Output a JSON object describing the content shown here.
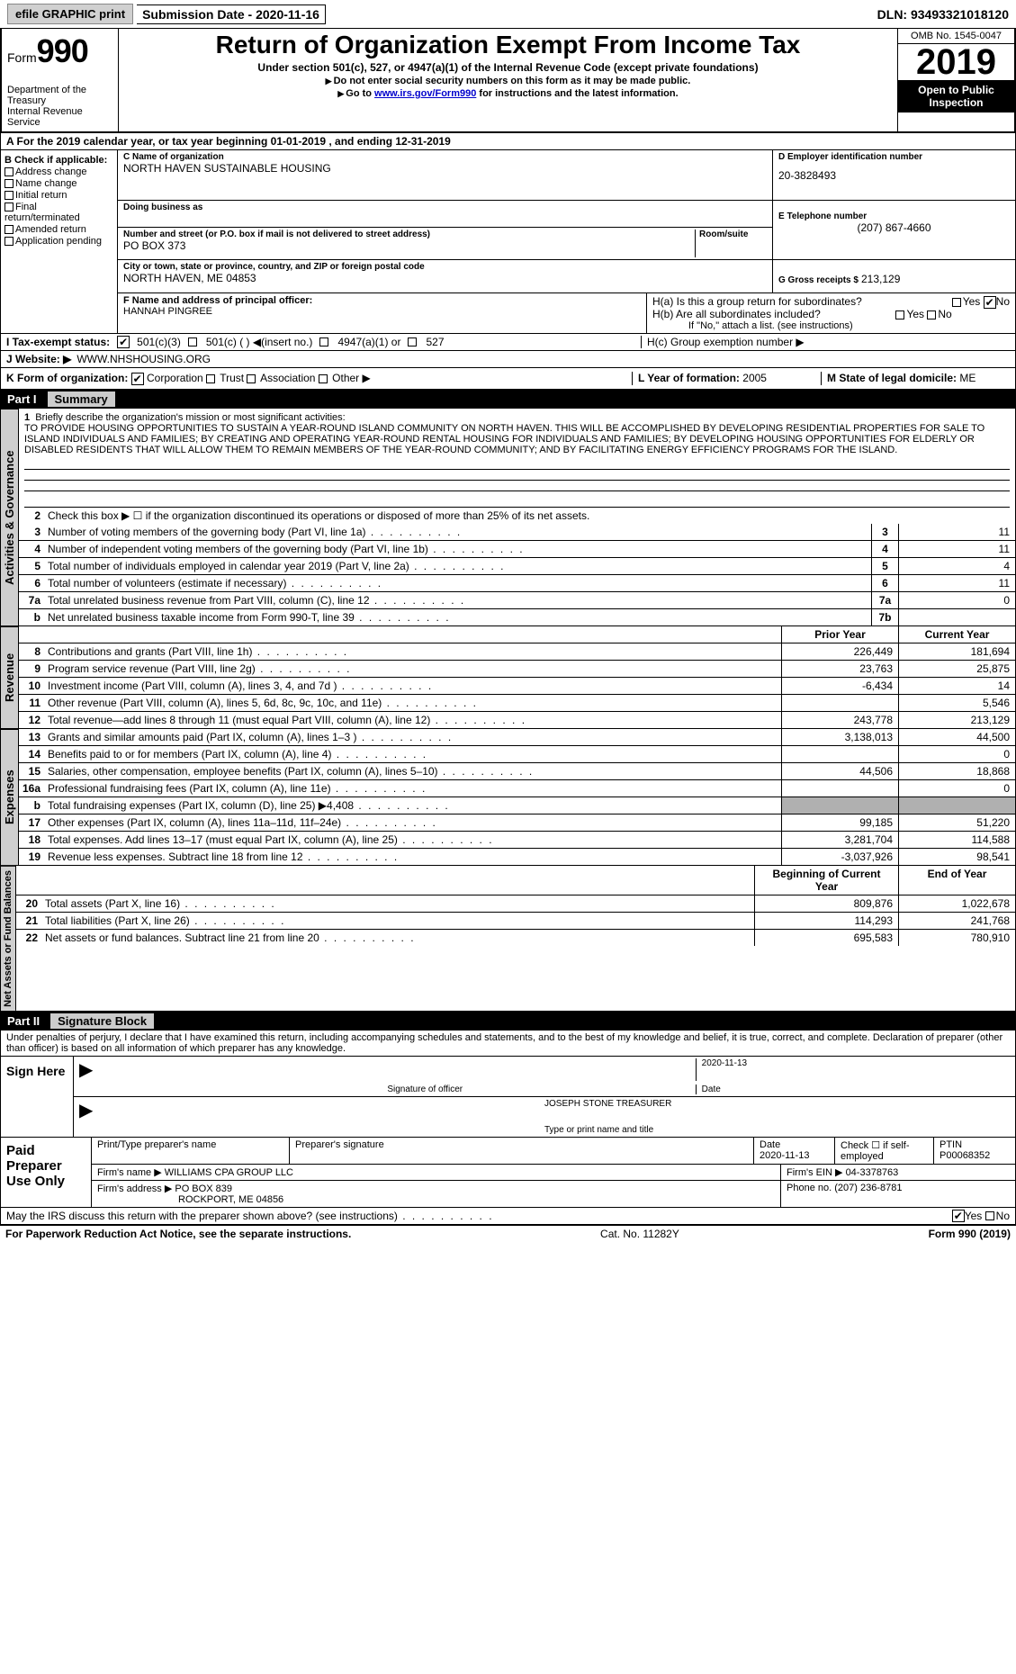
{
  "topbar": {
    "efile": "efile GRAPHIC print",
    "submission": "Submission Date - 2020-11-16",
    "dln_label": "DLN:",
    "dln": "93493321018120"
  },
  "header": {
    "form_label": "Form",
    "form_num": "990",
    "dept": "Department of the Treasury\nInternal Revenue Service",
    "title": "Return of Organization Exempt From Income Tax",
    "sub1": "Under section 501(c), 527, or 4947(a)(1) of the Internal Revenue Code (except private foundations)",
    "sub2": "Do not enter social security numbers on this form as it may be made public.",
    "sub3_pre": "Go to ",
    "sub3_link": "www.irs.gov/Form990",
    "sub3_post": " for instructions and the latest information.",
    "omb": "OMB No. 1545-0047",
    "year": "2019",
    "open": "Open to Public Inspection"
  },
  "section_a": "A For the 2019 calendar year, or tax year beginning 01-01-2019   , and ending 12-31-2019",
  "col_b": {
    "hdr": "B Check if applicable:",
    "addr": "Address change",
    "name": "Name change",
    "init": "Initial return",
    "final": "Final return/terminated",
    "amend": "Amended return",
    "app": "Application pending"
  },
  "col_c": {
    "name_lbl": "C Name of organization",
    "name": "NORTH HAVEN SUSTAINABLE HOUSING",
    "dba_lbl": "Doing business as",
    "dba": "",
    "addr_lbl": "Number and street (or P.O. box if mail is not delivered to street address)",
    "addr": "PO BOX 373",
    "room_lbl": "Room/suite",
    "city_lbl": "City or town, state or province, country, and ZIP or foreign postal code",
    "city": "NORTH HAVEN, ME  04853"
  },
  "col_d": {
    "lbl": "D Employer identification number",
    "val": "20-3828493"
  },
  "col_e": {
    "lbl": "E Telephone number",
    "val": "(207) 867-4660"
  },
  "col_g": {
    "lbl": "G Gross receipts $",
    "val": "213,129"
  },
  "row_f": {
    "lbl": "F Name and address of principal officer:",
    "name": "HANNAH PINGREE"
  },
  "row_h": {
    "a": "H(a)  Is this a group return for subordinates?",
    "b": "H(b)  Are all subordinates included?",
    "b_note": "If \"No,\" attach a list. (see instructions)",
    "c": "H(c)  Group exemption number ▶",
    "yes": "Yes",
    "no": "No"
  },
  "row_i": {
    "lbl": "I   Tax-exempt status:",
    "o1": "501(c)(3)",
    "o2": "501(c) (  ) ◀(insert no.)",
    "o3": "4947(a)(1) or",
    "o4": "527"
  },
  "row_j": {
    "lbl": "J  Website: ▶",
    "val": "WWW.NHSHOUSING.ORG"
  },
  "row_k": {
    "lbl": "K Form of organization:",
    "corp": "Corporation",
    "trust": "Trust",
    "assoc": "Association",
    "other": "Other ▶",
    "l_lbl": "L Year of formation:",
    "l_val": "2005",
    "m_lbl": "M State of legal domicile:",
    "m_val": "ME"
  },
  "part1": {
    "num": "Part I",
    "title": "Summary",
    "tab_ag": "Activities & Governance",
    "tab_rev": "Revenue",
    "tab_exp": "Expenses",
    "tab_na": "Net Assets or Fund Balances",
    "l1_lbl": "Briefly describe the organization's mission or most significant activities:",
    "l1_txt": "TO PROVIDE HOUSING OPPORTUNITIES TO SUSTAIN A YEAR-ROUND ISLAND COMMUNITY ON NORTH HAVEN. THIS WILL BE ACCOMPLISHED BY DEVELOPING RESIDENTIAL PROPERTIES FOR SALE TO ISLAND INDIVIDUALS AND FAMILIES; BY CREATING AND OPERATING YEAR-ROUND RENTAL HOUSING FOR INDIVIDUALS AND FAMILIES; BY DEVELOPING HOUSING OPPORTUNITIES FOR ELDERLY OR DISABLED RESIDENTS THAT WILL ALLOW THEM TO REMAIN MEMBERS OF THE YEAR-ROUND COMMUNITY; AND BY FACILITATING ENERGY EFFICIENCY PROGRAMS FOR THE ISLAND.",
    "l2": "Check this box ▶ ☐ if the organization discontinued its operations or disposed of more than 25% of its net assets.",
    "rows_ag": [
      {
        "n": "3",
        "t": "Number of voting members of the governing body (Part VI, line 1a)",
        "b": "3",
        "v": "11"
      },
      {
        "n": "4",
        "t": "Number of independent voting members of the governing body (Part VI, line 1b)",
        "b": "4",
        "v": "11"
      },
      {
        "n": "5",
        "t": "Total number of individuals employed in calendar year 2019 (Part V, line 2a)",
        "b": "5",
        "v": "4"
      },
      {
        "n": "6",
        "t": "Total number of volunteers (estimate if necessary)",
        "b": "6",
        "v": "11"
      },
      {
        "n": "7a",
        "t": "Total unrelated business revenue from Part VIII, column (C), line 12",
        "b": "7a",
        "v": "0"
      },
      {
        "n": "b",
        "t": "Net unrelated business taxable income from Form 990-T, line 39",
        "b": "7b",
        "v": ""
      }
    ],
    "hdr_prior": "Prior Year",
    "hdr_curr": "Current Year",
    "rows_rev": [
      {
        "n": "8",
        "t": "Contributions and grants (Part VIII, line 1h)",
        "p": "226,449",
        "c": "181,694"
      },
      {
        "n": "9",
        "t": "Program service revenue (Part VIII, line 2g)",
        "p": "23,763",
        "c": "25,875"
      },
      {
        "n": "10",
        "t": "Investment income (Part VIII, column (A), lines 3, 4, and 7d )",
        "p": "-6,434",
        "c": "14"
      },
      {
        "n": "11",
        "t": "Other revenue (Part VIII, column (A), lines 5, 6d, 8c, 9c, 10c, and 11e)",
        "p": "",
        "c": "5,546"
      },
      {
        "n": "12",
        "t": "Total revenue—add lines 8 through 11 (must equal Part VIII, column (A), line 12)",
        "p": "243,778",
        "c": "213,129"
      }
    ],
    "rows_exp": [
      {
        "n": "13",
        "t": "Grants and similar amounts paid (Part IX, column (A), lines 1–3 )",
        "p": "3,138,013",
        "c": "44,500"
      },
      {
        "n": "14",
        "t": "Benefits paid to or for members (Part IX, column (A), line 4)",
        "p": "",
        "c": "0"
      },
      {
        "n": "15",
        "t": "Salaries, other compensation, employee benefits (Part IX, column (A), lines 5–10)",
        "p": "44,506",
        "c": "18,868"
      },
      {
        "n": "16a",
        "t": "Professional fundraising fees (Part IX, column (A), line 11e)",
        "p": "",
        "c": "0"
      },
      {
        "n": "b",
        "t": "Total fundraising expenses (Part IX, column (D), line 25) ▶4,408",
        "p": "GRAY",
        "c": "GRAY"
      },
      {
        "n": "17",
        "t": "Other expenses (Part IX, column (A), lines 11a–11d, 11f–24e)",
        "p": "99,185",
        "c": "51,220"
      },
      {
        "n": "18",
        "t": "Total expenses. Add lines 13–17 (must equal Part IX, column (A), line 25)",
        "p": "3,281,704",
        "c": "114,588"
      },
      {
        "n": "19",
        "t": "Revenue less expenses. Subtract line 18 from line 12",
        "p": "-3,037,926",
        "c": "98,541"
      }
    ],
    "hdr_beg": "Beginning of Current Year",
    "hdr_end": "End of Year",
    "rows_na": [
      {
        "n": "20",
        "t": "Total assets (Part X, line 16)",
        "p": "809,876",
        "c": "1,022,678"
      },
      {
        "n": "21",
        "t": "Total liabilities (Part X, line 26)",
        "p": "114,293",
        "c": "241,768"
      },
      {
        "n": "22",
        "t": "Net assets or fund balances. Subtract line 21 from line 20",
        "p": "695,583",
        "c": "780,910"
      }
    ]
  },
  "part2": {
    "num": "Part II",
    "title": "Signature Block",
    "intro": "Under penalties of perjury, I declare that I have examined this return, including accompanying schedules and statements, and to the best of my knowledge and belief, it is true, correct, and complete. Declaration of preparer (other than officer) is based on all information of which preparer has any knowledge.",
    "sign_here": "Sign Here",
    "sig_officer": "Signature of officer",
    "sig_date": "2020-11-13",
    "date_lbl": "Date",
    "officer_name": "JOSEPH STONE TREASURER",
    "type_name": "Type or print name and title",
    "paid": "Paid Preparer Use Only",
    "prep_name_lbl": "Print/Type preparer's name",
    "prep_sig_lbl": "Preparer's signature",
    "prep_date_lbl": "Date",
    "prep_date": "2020-11-13",
    "check_self": "Check ☐ if self-employed",
    "ptin_lbl": "PTIN",
    "ptin": "P00068352",
    "firm_name_lbl": "Firm's name   ▶",
    "firm_name": "WILLIAMS CPA GROUP LLC",
    "firm_ein_lbl": "Firm's EIN ▶",
    "firm_ein": "04-3378763",
    "firm_addr_lbl": "Firm's address ▶",
    "firm_addr": "PO BOX 839",
    "firm_city": "ROCKPORT, ME  04856",
    "phone_lbl": "Phone no.",
    "phone": "(207) 236-8781",
    "may_irs": "May the IRS discuss this return with the preparer shown above? (see instructions)",
    "yes": "Yes",
    "no": "No"
  },
  "footer": {
    "l": "For Paperwork Reduction Act Notice, see the separate instructions.",
    "m": "Cat. No. 11282Y",
    "r": "Form 990 (2019)"
  }
}
